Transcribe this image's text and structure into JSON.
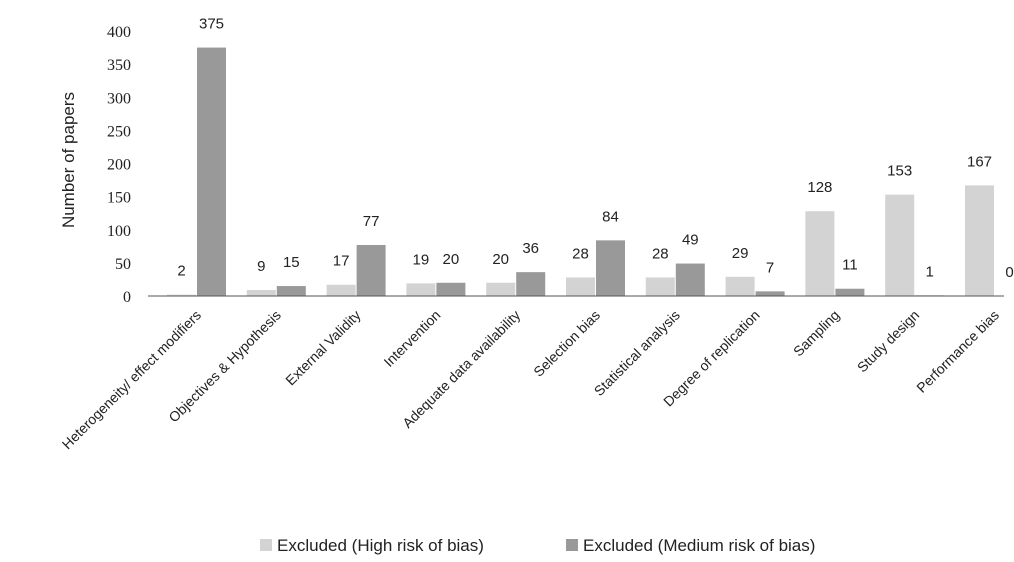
{
  "chart_data": {
    "type": "bar",
    "title": "",
    "xlabel": "",
    "ylabel": "Number of papers",
    "ylim": [
      0,
      400
    ],
    "yticks": [
      0,
      50,
      100,
      150,
      200,
      250,
      300,
      350,
      400
    ],
    "grid": false,
    "legend_position": "bottom",
    "categories": [
      "Heterogeneity/ effect modifiers",
      "Objectives & Hypothesis",
      "External Validity",
      "Intervention",
      "Adequate data availability",
      "Selection bias",
      "Statistical analysis",
      "Degree of replication",
      "Sampling",
      "Study design",
      "Performance bias"
    ],
    "series": [
      {
        "name": "Excluded (High risk of bias)",
        "color": "#d3d3d3",
        "values": [
          2,
          9,
          17,
          19,
          20,
          28,
          28,
          29,
          128,
          153,
          167
        ]
      },
      {
        "name": "Excluded (Medium risk of bias)",
        "color": "#999999",
        "values": [
          375,
          15,
          77,
          20,
          36,
          84,
          49,
          7,
          11,
          1,
          0
        ]
      }
    ]
  }
}
